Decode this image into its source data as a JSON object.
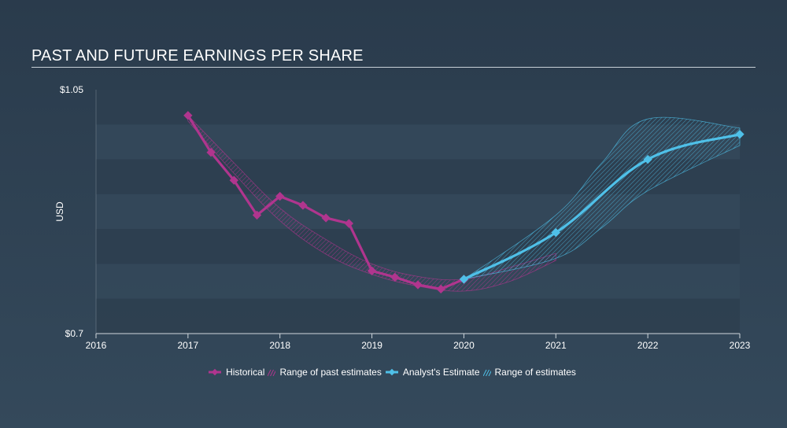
{
  "chart_data": {
    "type": "line",
    "title": "PAST AND FUTURE EARNINGS PER SHARE",
    "ylabel": "USD",
    "xlabel": "",
    "ylim": [
      0.7,
      1.05
    ],
    "xlim": [
      2016,
      2023
    ],
    "y_tick_labels": [
      "$1.05",
      "$0.7"
    ],
    "x_tick_labels": [
      "2016",
      "2017",
      "2018",
      "2019",
      "2020",
      "2021",
      "2022",
      "2023"
    ],
    "series": [
      {
        "name": "Historical",
        "color": "#b0358e",
        "points": [
          [
            2017.0,
            1.013
          ],
          [
            2017.25,
            0.96
          ],
          [
            2017.5,
            0.92
          ],
          [
            2017.75,
            0.87
          ],
          [
            2018.0,
            0.897
          ],
          [
            2018.25,
            0.884
          ],
          [
            2018.5,
            0.866
          ],
          [
            2018.75,
            0.858
          ],
          [
            2019.0,
            0.79
          ],
          [
            2019.25,
            0.781
          ],
          [
            2019.5,
            0.77
          ],
          [
            2019.75,
            0.764
          ],
          [
            2020.0,
            0.778
          ]
        ]
      },
      {
        "name": "Analyst's Estimate",
        "color": "#4fc0e8",
        "points": [
          [
            2020.0,
            0.778
          ],
          [
            2021.0,
            0.845
          ],
          [
            2022.0,
            0.95
          ],
          [
            2023.0,
            0.986
          ]
        ]
      }
    ],
    "bands": [
      {
        "name": "Range of past estimates",
        "color": "#b0358e",
        "x": [
          2017.0,
          2017.5,
          2018.0,
          2018.5,
          2019.0,
          2019.5,
          2020.0,
          2020.5,
          2021.0
        ],
        "high": [
          1.013,
          0.945,
          0.88,
          0.835,
          0.8,
          0.782,
          0.778,
          0.795,
          0.815
        ],
        "low": [
          1.005,
          0.93,
          0.862,
          0.814,
          0.785,
          0.768,
          0.761,
          0.775,
          0.805
        ]
      },
      {
        "name": "Range of estimates",
        "color": "#4fc0e8",
        "x": [
          2020.0,
          2021.0,
          2021.5,
          2022.0,
          2023.0
        ],
        "high": [
          0.778,
          0.87,
          0.945,
          1.008,
          0.995
        ],
        "low": [
          0.778,
          0.808,
          0.852,
          0.905,
          0.97
        ]
      }
    ],
    "legend": [
      {
        "label": "Historical",
        "kind": "line-marker",
        "color": "#b0358e"
      },
      {
        "label": "Range of past estimates",
        "kind": "hatch",
        "color": "#b0358e"
      },
      {
        "label": "Analyst's Estimate",
        "kind": "line-marker",
        "color": "#4fc0e8"
      },
      {
        "label": "Range of estimates",
        "kind": "hatch",
        "color": "#4fc0e8"
      }
    ],
    "legend_position": "bottom-center"
  }
}
